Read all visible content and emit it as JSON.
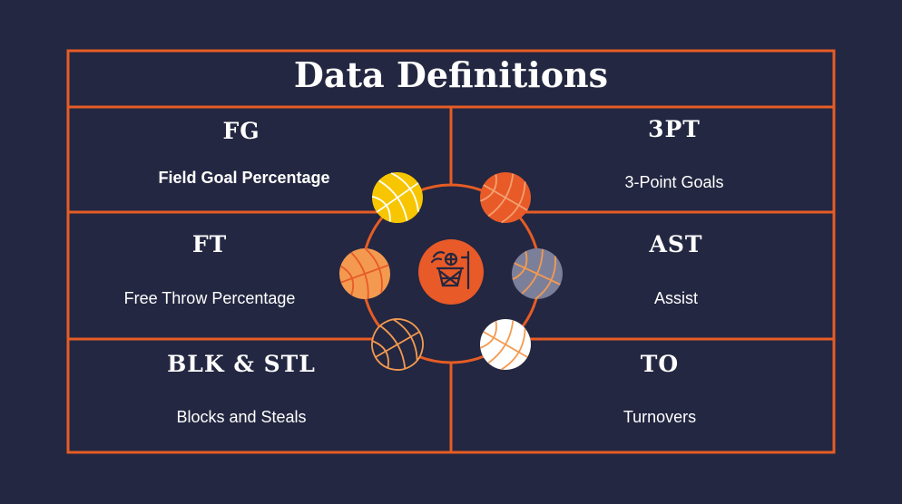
{
  "title": "Data Definitions",
  "definitions": [
    {
      "abbr": "FG",
      "desc": "Field Goal Percentage"
    },
    {
      "abbr": "3PT",
      "desc": "3-Point Goals"
    },
    {
      "abbr": "FT",
      "desc": "Free Throw Percentage"
    },
    {
      "abbr": "AST",
      "desc": "Assist"
    },
    {
      "abbr": "BLK & STL",
      "desc": "Blocks and Steals"
    },
    {
      "abbr": "TO",
      "desc": "Turnovers"
    }
  ],
  "colors": {
    "background": "#232741",
    "accent": "#e65c25",
    "ball_yellow": "#f7c600",
    "ball_orange": "#e85a28",
    "ball_light_orange": "#f49a50",
    "ball_gray": "#7c7f9a",
    "ball_navy": "#232741",
    "ball_white": "#ffffff"
  },
  "icons": {
    "center": "basketball-hoop-icon",
    "balls": [
      "basketball-icon"
    ]
  }
}
